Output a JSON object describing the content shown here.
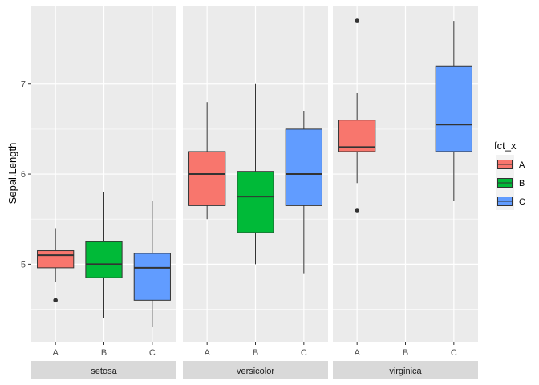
{
  "chart_data": {
    "type": "boxplot",
    "ylabel": "Sepal.Length",
    "xlabel": "",
    "ylim": [
      4.14,
      7.87
    ],
    "yticks": [
      5,
      6,
      7
    ],
    "ytick_labels": [
      "5",
      "6",
      "7"
    ],
    "categories": [
      "A",
      "B",
      "C"
    ],
    "legend": {
      "title": "fct_x",
      "entries": [
        "A",
        "B",
        "C"
      ],
      "position": "right"
    },
    "colors": {
      "A": "#F8766D",
      "B": "#00BA38",
      "C": "#619CFF"
    },
    "panels": [
      {
        "name": "setosa",
        "boxes": [
          {
            "x": "A",
            "low": 4.8,
            "q1": 4.96,
            "median": 5.1,
            "q3": 5.15,
            "high": 5.4,
            "outliers": [
              4.6
            ]
          },
          {
            "x": "B",
            "low": 4.4,
            "q1": 4.85,
            "median": 5.0,
            "q3": 5.25,
            "high": 5.8,
            "outliers": []
          },
          {
            "x": "C",
            "low": 4.3,
            "q1": 4.6,
            "median": 4.96,
            "q3": 5.12,
            "high": 5.7,
            "outliers": []
          }
        ]
      },
      {
        "name": "versicolor",
        "boxes": [
          {
            "x": "A",
            "low": 5.5,
            "q1": 5.65,
            "median": 6.0,
            "q3": 6.25,
            "high": 6.8,
            "outliers": []
          },
          {
            "x": "B",
            "low": 5.0,
            "q1": 5.35,
            "median": 5.75,
            "q3": 6.03,
            "high": 7.0,
            "outliers": []
          },
          {
            "x": "C",
            "low": 4.9,
            "q1": 5.65,
            "median": 6.0,
            "q3": 6.5,
            "high": 6.7,
            "outliers": []
          }
        ]
      },
      {
        "name": "virginica",
        "boxes": [
          {
            "x": "A",
            "low": 5.9,
            "q1": 6.25,
            "median": 6.3,
            "q3": 6.6,
            "high": 6.9,
            "outliers": [
              7.7,
              5.6
            ]
          },
          {
            "x": "C",
            "low": 5.7,
            "q1": 6.25,
            "median": 6.55,
            "q3": 7.2,
            "high": 7.7,
            "outliers": []
          }
        ]
      }
    ]
  }
}
